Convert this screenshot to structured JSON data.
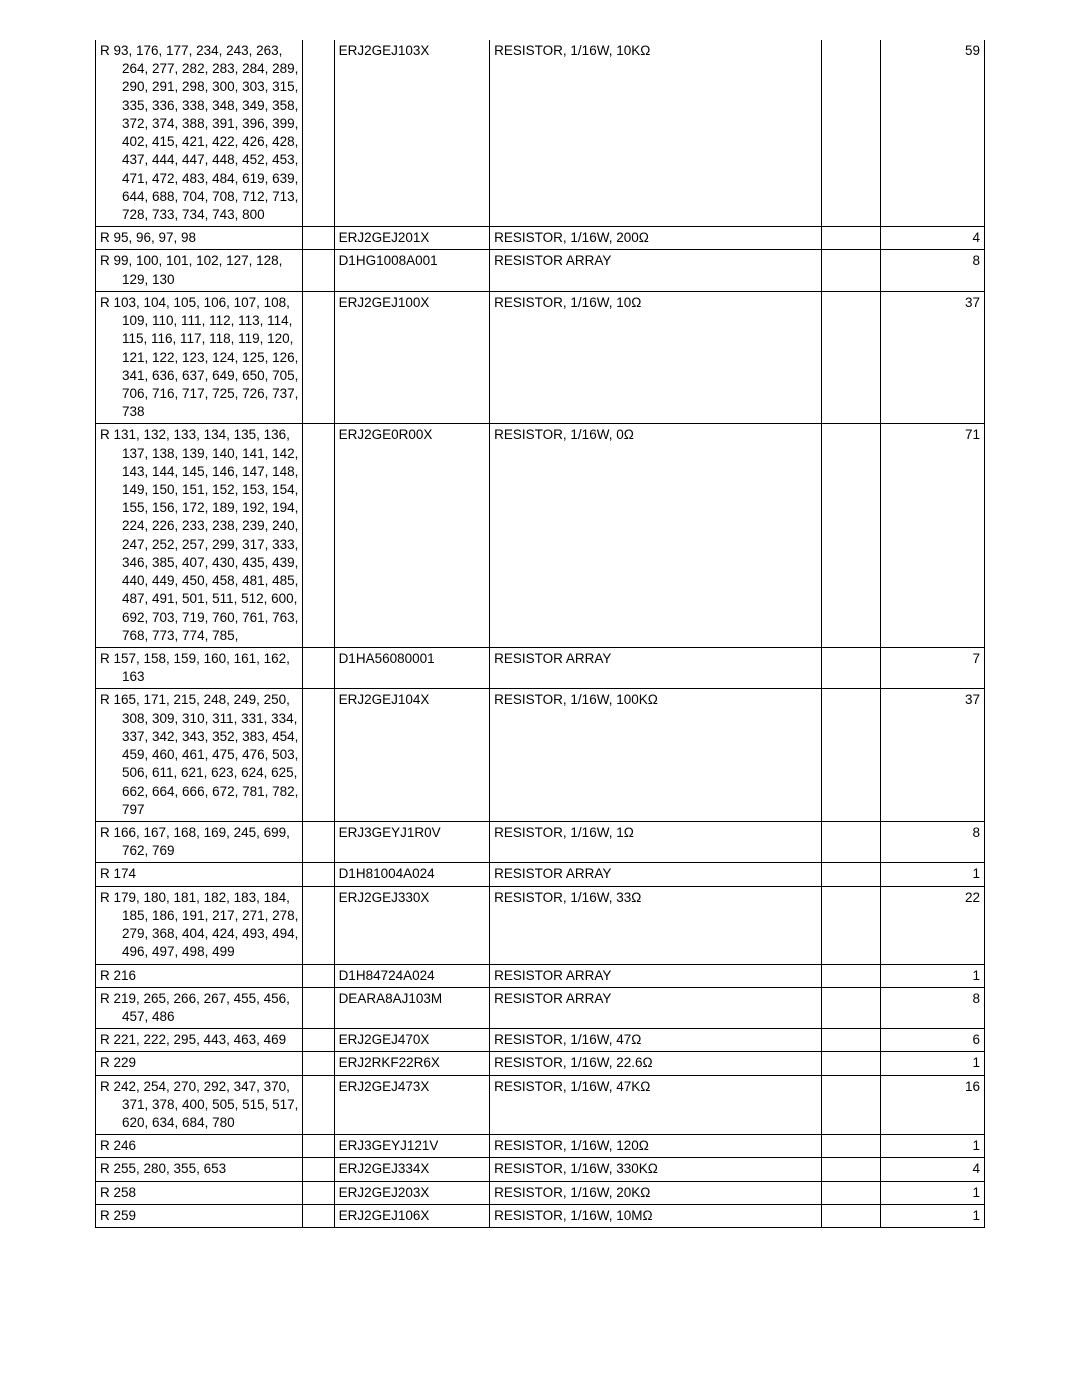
{
  "rows": [
    {
      "refs": "R 93, 176, 177, 234, 243, 263, 264, 277, 282, 283, 284, 289, 290, 291, 298, 300, 303, 315, 335, 336, 338, 348, 349, 358, 372, 374, 388, 391, 396, 399, 402, 415, 421, 422, 426, 428, 437, 444, 447, 448, 452, 453, 471, 472, 483, 484, 619, 639, 644, 688, 704, 708, 712, 713, 728, 733, 734, 743, 800",
      "part": "ERJ2GEJ103X",
      "desc": "RESISTOR, 1/16W, 10KΩ",
      "qty": "59",
      "truncBottom": true
    },
    {
      "refs": "R 95, 96, 97, 98",
      "part": "ERJ2GEJ201X",
      "desc": "RESISTOR, 1/16W, 200Ω",
      "qty": "4"
    },
    {
      "refs": "R 99, 100, 101, 102, 127, 128, 129, 130",
      "part": "D1HG1008A001",
      "desc": "RESISTOR ARRAY",
      "qty": "8"
    },
    {
      "refs": "R 103, 104, 105, 106, 107, 108, 109, 110, 111, 112, 113, 114, 115, 116, 117, 118, 119, 120, 121, 122, 123, 124, 125, 126, 341, 636, 637, 649, 650, 705, 706, 716, 717, 725, 726, 737, 738",
      "part": "ERJ2GEJ100X",
      "desc": "RESISTOR, 1/16W, 10Ω",
      "qty": "37",
      "truncBottom": true
    },
    {
      "refs": "R 131, 132, 133, 134, 135, 136, 137, 138, 139, 140, 141, 142, 143, 144, 145, 146, 147, 148, 149, 150, 151, 152, 153, 154, 155, 156, 172, 189, 192, 194, 224, 226, 233, 238, 239, 240, 247, 252, 257, 299, 317, 333, 346, 385, 407, 430, 435, 439, 440, 449, 450, 458, 481, 485, 487, 491, 501, 511, 512, 600, 692, 703, 719, 760, 761, 763, 768, 773, 774, 785,",
      "part": "ERJ2GE0R00X",
      "desc": "RESISTOR, 1/16W, 0Ω",
      "qty": "71",
      "truncBottom": true
    },
    {
      "refs": "R 157, 158, 159, 160, 161, 162, 163",
      "part": "D1HA56080001",
      "desc": "RESISTOR ARRAY",
      "qty": "7"
    },
    {
      "refs": "R 165, 171, 215, 248, 249, 250, 308, 309, 310, 311, 331, 334, 337, 342, 343, 352, 383, 454, 459, 460, 461, 475, 476, 503, 506, 611, 621, 623, 624, 625, 662, 664, 666, 672, 781, 782, 797",
      "part": "ERJ2GEJ104X",
      "desc": "RESISTOR, 1/16W, 100KΩ",
      "qty": "37",
      "truncBottom": true
    },
    {
      "refs": "R 166, 167, 168, 169, 245, 699, 762, 769",
      "part": "ERJ3GEYJ1R0V",
      "desc": "RESISTOR, 1/16W, 1Ω",
      "qty": "8"
    },
    {
      "refs": "R 174",
      "part": "D1H81004A024",
      "desc": "RESISTOR ARRAY",
      "qty": "1"
    },
    {
      "refs": "R 179, 180, 181, 182, 183, 184, 185, 186, 191, 217, 271, 278, 279, 368, 404, 424, 493, 494, 496, 497, 498, 499",
      "part": "ERJ2GEJ330X",
      "desc": "RESISTOR, 1/16W, 33Ω",
      "qty": "22",
      "truncBottom": true
    },
    {
      "refs": "R 216",
      "part": "D1H84724A024",
      "desc": "RESISTOR ARRAY",
      "qty": "1"
    },
    {
      "refs": "R 219, 265, 266, 267, 455, 456, 457, 486",
      "part": "DEARA8AJ103M",
      "desc": "RESISTOR ARRAY",
      "qty": "8"
    },
    {
      "refs": "R 221, 222, 295, 443, 463, 469",
      "part": "ERJ2GEJ470X",
      "desc": "RESISTOR, 1/16W, 47Ω",
      "qty": "6"
    },
    {
      "refs": "R 229",
      "part": "ERJ2RKF22R6X",
      "desc": "RESISTOR, 1/16W, 22.6Ω",
      "qty": "1"
    },
    {
      "refs": "R 242, 254, 270, 292, 347, 370, 371, 378, 400, 505, 515, 517, 620, 634, 684, 780",
      "part": "ERJ2GEJ473X",
      "desc": "RESISTOR, 1/16W, 47KΩ",
      "qty": "16"
    },
    {
      "refs": "R 246",
      "part": "ERJ3GEYJ121V",
      "desc": "RESISTOR, 1/16W, 120Ω",
      "qty": "1"
    },
    {
      "refs": "R 255, 280, 355, 653",
      "part": "ERJ2GEJ334X",
      "desc": "RESISTOR, 1/16W, 330KΩ",
      "qty": "4"
    },
    {
      "refs": "R 258",
      "part": "ERJ2GEJ203X",
      "desc": "RESISTOR, 1/16W, 20KΩ",
      "qty": "1"
    },
    {
      "refs": "R 259",
      "part": "ERJ2GEJ106X",
      "desc": "RESISTOR, 1/16W, 10MΩ",
      "qty": "1"
    }
  ]
}
